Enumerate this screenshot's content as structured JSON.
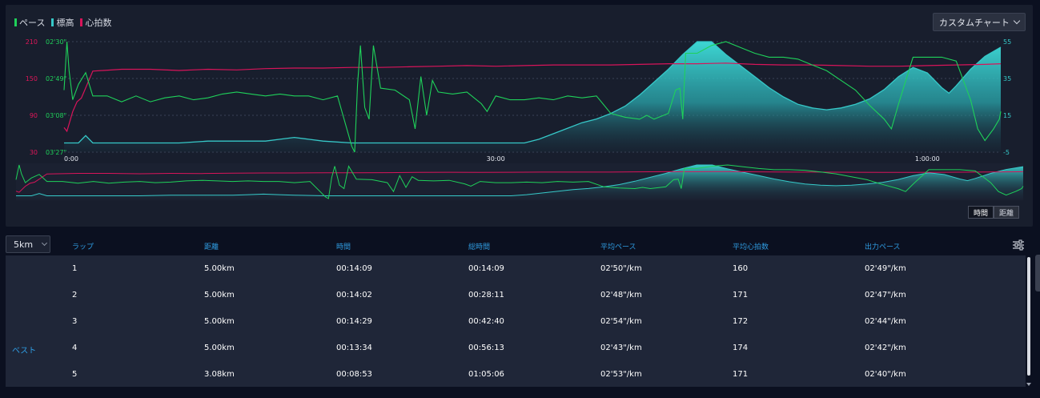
{
  "legend": {
    "items": [
      {
        "label": "ペース",
        "color": "#1fd15a"
      },
      {
        "label": "標高",
        "color": "#36c8c8"
      },
      {
        "label": "心拍数",
        "color": "#d8145a"
      }
    ]
  },
  "custom_chart_label": "カスタムチャート",
  "toggle": {
    "time_label": "時間",
    "distance_label": "距離"
  },
  "lap_select": {
    "value": "5km"
  },
  "chart_data": {
    "type": "line",
    "x_axis": {
      "ticks": [
        "0:00",
        "30:00",
        "1:00:00"
      ],
      "tick_values_min": [
        0,
        30,
        60
      ],
      "range_min": [
        0,
        65.1
      ]
    },
    "y_axes": {
      "heart_rate": {
        "ticks": [
          "210",
          "150",
          "90",
          "30"
        ],
        "range": [
          30,
          210
        ],
        "color": "#e0165a"
      },
      "pace": {
        "ticks": [
          "02'30\"",
          "02'49\"",
          "03'08\"",
          "03'27\""
        ],
        "range_sec": [
          150,
          207
        ],
        "color": "#1fd15a"
      },
      "elevation": {
        "ticks": [
          "55",
          "35",
          "15",
          "-5"
        ],
        "range": [
          -5,
          55
        ],
        "color": "#36c8c8"
      }
    },
    "series": [
      {
        "name": "心拍数",
        "color": "#d8145a",
        "points": [
          [
            0,
            70
          ],
          [
            0.2,
            64
          ],
          [
            0.6,
            96
          ],
          [
            0.9,
            112
          ],
          [
            1.2,
            118
          ],
          [
            2,
            162
          ],
          [
            4,
            165
          ],
          [
            6,
            165
          ],
          [
            8,
            163
          ],
          [
            10,
            165
          ],
          [
            12,
            164
          ],
          [
            14,
            166
          ],
          [
            16,
            167
          ],
          [
            18,
            167
          ],
          [
            20,
            168
          ],
          [
            22,
            168
          ],
          [
            24,
            169
          ],
          [
            26,
            170
          ],
          [
            28,
            171
          ],
          [
            30,
            170
          ],
          [
            32,
            171
          ],
          [
            34,
            172
          ],
          [
            36,
            172
          ],
          [
            38,
            172
          ],
          [
            40,
            173
          ],
          [
            42,
            174
          ],
          [
            44,
            174
          ],
          [
            46,
            175
          ],
          [
            48,
            173
          ],
          [
            50,
            172
          ],
          [
            52,
            172
          ],
          [
            54,
            171
          ],
          [
            56,
            170
          ],
          [
            58,
            170
          ],
          [
            60,
            171
          ],
          [
            62,
            172
          ],
          [
            64,
            173
          ],
          [
            65.1,
            174
          ]
        ]
      },
      {
        "name": "ペース",
        "color": "#1fd15a",
        "points": [
          [
            0,
            175
          ],
          [
            0.2,
            150
          ],
          [
            0.35,
            165
          ],
          [
            0.6,
            180
          ],
          [
            1,
            172
          ],
          [
            1.5,
            166
          ],
          [
            2,
            178
          ],
          [
            3,
            178
          ],
          [
            4,
            181
          ],
          [
            5,
            178
          ],
          [
            6,
            181
          ],
          [
            7,
            179
          ],
          [
            8,
            178
          ],
          [
            9,
            180
          ],
          [
            10,
            179
          ],
          [
            11,
            177
          ],
          [
            12,
            176
          ],
          [
            13,
            177
          ],
          [
            14,
            178
          ],
          [
            15,
            177
          ],
          [
            16,
            178
          ],
          [
            17,
            178
          ],
          [
            18,
            180
          ],
          [
            19,
            178
          ],
          [
            20,
            204
          ],
          [
            20.2,
            207
          ],
          [
            20.4,
            172
          ],
          [
            20.6,
            152
          ],
          [
            20.9,
            184
          ],
          [
            21.2,
            190
          ],
          [
            21.5,
            152
          ],
          [
            22,
            174
          ],
          [
            23,
            175
          ],
          [
            24,
            180
          ],
          [
            24.4,
            195
          ],
          [
            24.8,
            168
          ],
          [
            25.2,
            188
          ],
          [
            25.6,
            170
          ],
          [
            26,
            176
          ],
          [
            27,
            177
          ],
          [
            28,
            176
          ],
          [
            29,
            182
          ],
          [
            29.4,
            186
          ],
          [
            30,
            178
          ],
          [
            31,
            180
          ],
          [
            32,
            180
          ],
          [
            33,
            179
          ],
          [
            34,
            180
          ],
          [
            35,
            178
          ],
          [
            36,
            179
          ],
          [
            37,
            178
          ],
          [
            38,
            187
          ],
          [
            39,
            189
          ],
          [
            40,
            190
          ],
          [
            40.5,
            188
          ],
          [
            41,
            190
          ],
          [
            42,
            187
          ],
          [
            42.5,
            175
          ],
          [
            42.8,
            174
          ],
          [
            43,
            190
          ],
          [
            43.2,
            156
          ],
          [
            44,
            156
          ],
          [
            45,
            152
          ],
          [
            46,
            150
          ],
          [
            47,
            153
          ],
          [
            48,
            156
          ],
          [
            49,
            158
          ],
          [
            50,
            158
          ],
          [
            51,
            159
          ],
          [
            52,
            162
          ],
          [
            53,
            165
          ],
          [
            54,
            170
          ],
          [
            55,
            175
          ],
          [
            56,
            183
          ],
          [
            57,
            190
          ],
          [
            57.5,
            195
          ],
          [
            58,
            182
          ],
          [
            58.5,
            170
          ],
          [
            59,
            158
          ],
          [
            60,
            158
          ],
          [
            61,
            158
          ],
          [
            62,
            160
          ],
          [
            63,
            180
          ],
          [
            63.5,
            195
          ],
          [
            64,
            201
          ],
          [
            64.6,
            195
          ],
          [
            65,
            190
          ],
          [
            65.1,
            186
          ]
        ]
      },
      {
        "name": "標高",
        "color": "#36c8c8",
        "points": [
          [
            0,
            0
          ],
          [
            1,
            0
          ],
          [
            1.5,
            4
          ],
          [
            2,
            0
          ],
          [
            4,
            0
          ],
          [
            6,
            0
          ],
          [
            8,
            0
          ],
          [
            10,
            1
          ],
          [
            12,
            1
          ],
          [
            14,
            1
          ],
          [
            15,
            2
          ],
          [
            16,
            3
          ],
          [
            17,
            2
          ],
          [
            18,
            1
          ],
          [
            20,
            0
          ],
          [
            22,
            0
          ],
          [
            24,
            0
          ],
          [
            26,
            0
          ],
          [
            28,
            0
          ],
          [
            30,
            0
          ],
          [
            32,
            0
          ],
          [
            33,
            2
          ],
          [
            34,
            5
          ],
          [
            35,
            8
          ],
          [
            36,
            11
          ],
          [
            37,
            13
          ],
          [
            38,
            16
          ],
          [
            39,
            20
          ],
          [
            40,
            26
          ],
          [
            41,
            33
          ],
          [
            42,
            40
          ],
          [
            43,
            48
          ],
          [
            44,
            55
          ],
          [
            45,
            55
          ],
          [
            46,
            48
          ],
          [
            47,
            42
          ],
          [
            48,
            36
          ],
          [
            49,
            30
          ],
          [
            50,
            25
          ],
          [
            51,
            21
          ],
          [
            52,
            19
          ],
          [
            53,
            18
          ],
          [
            54,
            19
          ],
          [
            55,
            21
          ],
          [
            56,
            24
          ],
          [
            57,
            29
          ],
          [
            58,
            36
          ],
          [
            59,
            41
          ],
          [
            60,
            38
          ],
          [
            61,
            30
          ],
          [
            61.5,
            27
          ],
          [
            62,
            31
          ],
          [
            63,
            40
          ],
          [
            64,
            47
          ],
          [
            65.1,
            52
          ]
        ]
      }
    ],
    "elevation_style": "area-gradient",
    "grid": "horizontal-dashed",
    "overview_strip": true
  },
  "table": {
    "headers": [
      "ラップ",
      "距離",
      "時間",
      "総時間",
      "平均ペース",
      "平均心拍数",
      "出力ペース"
    ],
    "rows": [
      {
        "tag": "",
        "lap": "1",
        "distance": "5.00km",
        "time": "00:14:09",
        "total": "00:14:09",
        "avg_pace": "02'50\"/km",
        "avg_hr": "160",
        "output_pace": "02'49\"/km"
      },
      {
        "tag": "",
        "lap": "2",
        "distance": "5.00km",
        "time": "00:14:02",
        "total": "00:28:11",
        "avg_pace": "02'48\"/km",
        "avg_hr": "171",
        "output_pace": "02'47\"/km"
      },
      {
        "tag": "",
        "lap": "3",
        "distance": "5.00km",
        "time": "00:14:29",
        "total": "00:42:40",
        "avg_pace": "02'54\"/km",
        "avg_hr": "172",
        "output_pace": "02'44\"/km"
      },
      {
        "tag": "ベスト",
        "lap": "4",
        "distance": "5.00km",
        "time": "00:13:34",
        "total": "00:56:13",
        "avg_pace": "02'43\"/km",
        "avg_hr": "174",
        "output_pace": "02'42\"/km"
      },
      {
        "tag": "",
        "lap": "5",
        "distance": "3.08km",
        "time": "00:08:53",
        "total": "01:05:06",
        "avg_pace": "02'53\"/km",
        "avg_hr": "171",
        "output_pace": "02'40\"/km"
      }
    ]
  }
}
